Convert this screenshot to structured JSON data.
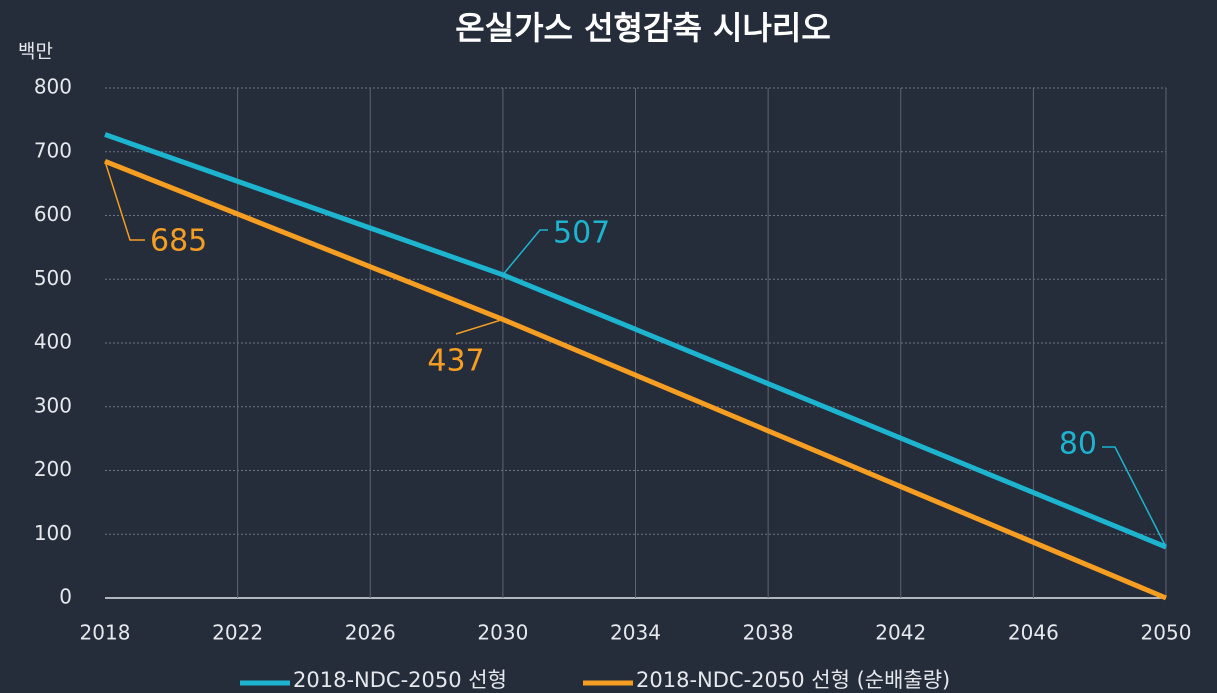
{
  "chart_data": {
    "type": "line",
    "title": "온실가스 선형감축 시나리오",
    "y_unit": "백만",
    "x": [
      2018,
      2030,
      2050
    ],
    "series": [
      {
        "name": "2018-NDC-2050 선형",
        "color": "#1db4d0",
        "values": [
          727,
          507,
          80
        ],
        "value_labels": [
          null,
          "507",
          "80"
        ]
      },
      {
        "name": "2018-NDC-2050 선형 (순배출량)",
        "color": "#f59e22",
        "values": [
          685,
          437,
          0
        ],
        "value_labels": [
          "685",
          "437",
          null
        ]
      }
    ],
    "xlim": [
      2018,
      2050
    ],
    "xticks": [
      2018,
      2022,
      2026,
      2030,
      2034,
      2038,
      2042,
      2046,
      2050
    ],
    "ylim": [
      0,
      800
    ],
    "yticks": [
      0,
      100,
      200,
      300,
      400,
      500,
      600,
      700,
      800
    ],
    "grid": true,
    "legend": "bottom"
  }
}
